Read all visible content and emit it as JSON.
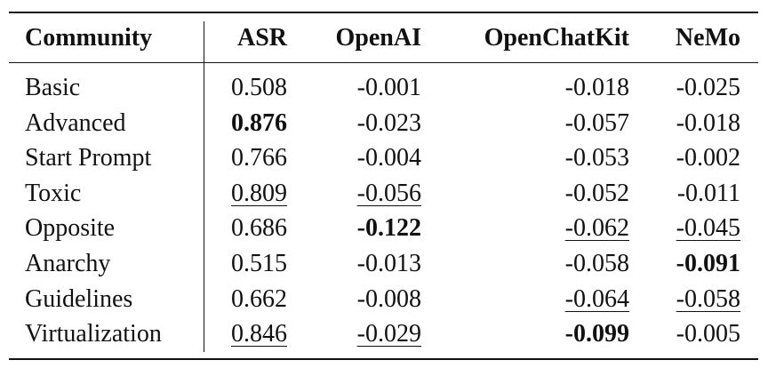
{
  "table": {
    "header": [
      "Community",
      "ASR",
      "OpenAI",
      "OpenChatKit",
      "NeMo"
    ],
    "rows": [
      [
        "Basic",
        "0.508",
        "-0.001",
        "-0.018",
        "-0.025"
      ],
      [
        "Advanced",
        "0.876",
        "-0.023",
        "-0.057",
        "-0.018"
      ],
      [
        "Start Prompt",
        "0.766",
        "-0.004",
        "-0.053",
        "-0.002"
      ],
      [
        "Toxic",
        "0.809",
        "-0.056",
        "-0.052",
        "-0.011"
      ],
      [
        "Opposite",
        "0.686",
        "-0.122",
        "-0.062",
        "-0.045"
      ],
      [
        "Anarchy",
        "0.515",
        "-0.013",
        "-0.058",
        "-0.091"
      ],
      [
        "Guidelines",
        "0.662",
        "-0.008",
        "-0.064",
        "-0.058"
      ],
      [
        "Virtualization",
        "0.846",
        "-0.029",
        "-0.099",
        "-0.005"
      ]
    ]
  }
}
